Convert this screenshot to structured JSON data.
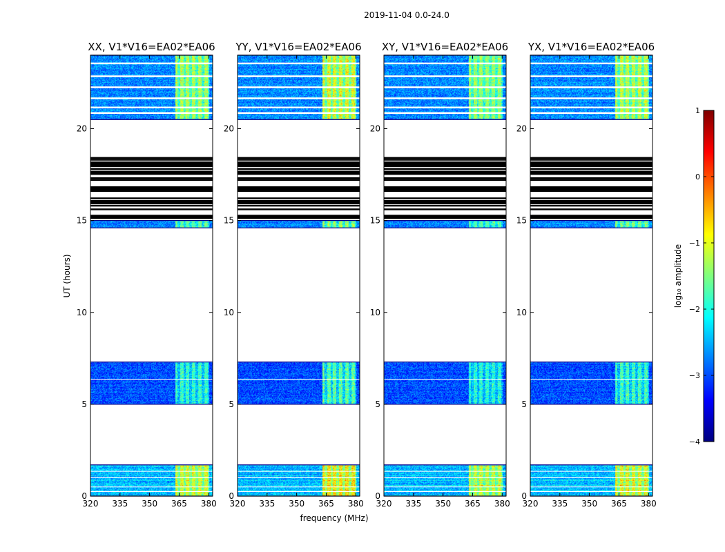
{
  "figure": {
    "suptitle": "2019-11-04 0.0-24.0"
  },
  "chart_data": {
    "type": "heatmap",
    "xlabel": "frequency (MHz)",
    "ylabel": "UT (hours)",
    "xlim": [
      320,
      382
    ],
    "ylim": [
      0,
      24
    ],
    "xticks": [
      320,
      335,
      350,
      365,
      380
    ],
    "yticks": [
      0,
      5,
      10,
      15,
      20
    ],
    "panels": [
      {
        "title": "XX, V1*V16=EA02*EA06",
        "rfi_strength": 0.8
      },
      {
        "title": "YY, V1*V16=EA02*EA06",
        "rfi_strength": 0.95
      },
      {
        "title": "XY, V1*V16=EA02*EA06",
        "rfi_strength": 0.75
      },
      {
        "title": "YX, V1*V16=EA02*EA06",
        "rfi_strength": 0.85
      }
    ],
    "data_blocks": [
      {
        "t_start": 0.0,
        "t_end": 1.7,
        "level": -2.5,
        "rfi": true
      },
      {
        "t_start": 5.0,
        "t_end": 7.3,
        "level": -3.0,
        "rfi": true
      },
      {
        "t_start": 14.6,
        "t_end": 15.0,
        "level": -2.7,
        "rfi": true
      },
      {
        "t_start": 20.5,
        "t_end": 24.0,
        "level": -2.7,
        "rfi": true
      }
    ],
    "rfi_band_mhz": [
      363,
      380
    ],
    "blank_lines_hours": [
      6.35,
      1.35,
      0.5,
      0.25,
      1.0
    ],
    "flagged_hours_black": [
      15.2,
      15.6,
      15.8,
      16.0,
      16.2,
      16.6,
      16.75,
      17.2,
      17.3,
      17.6,
      17.8,
      17.95,
      18.1,
      18.3,
      18.4
    ],
    "colorbar": {
      "label": "log₁₀ amplitude",
      "min": -4,
      "max": 1,
      "ticks": [
        -4,
        -3,
        -2,
        -1,
        0,
        1
      ],
      "colormap": [
        "#00007f",
        "#0000ff",
        "#007fff",
        "#00ffff",
        "#7fff7f",
        "#ffff00",
        "#ff7f00",
        "#ff0000",
        "#7f0000"
      ]
    }
  }
}
